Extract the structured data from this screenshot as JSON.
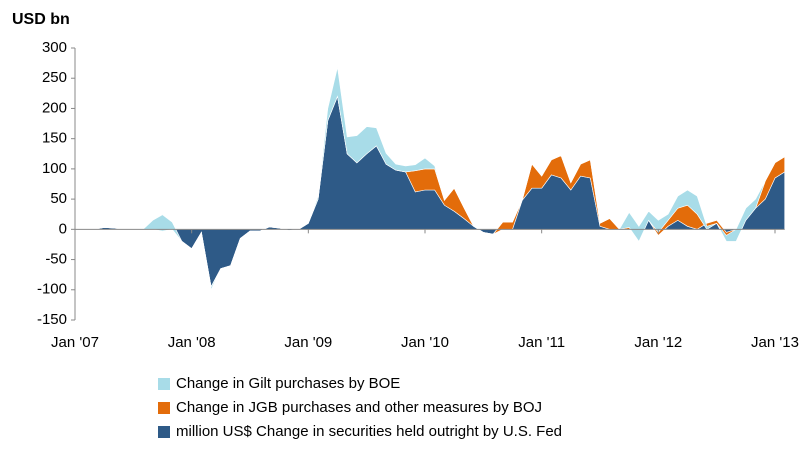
{
  "chart_data": {
    "type": "stacked-area",
    "title": "USD bn",
    "categories": [
      "Jan '07",
      null,
      null,
      null,
      null,
      null,
      null,
      null,
      null,
      null,
      null,
      null,
      "Jan '08",
      null,
      null,
      null,
      null,
      null,
      null,
      null,
      null,
      null,
      null,
      null,
      "Jan '09",
      null,
      null,
      null,
      null,
      null,
      null,
      null,
      null,
      null,
      null,
      null,
      "Jan '10",
      null,
      null,
      null,
      null,
      null,
      null,
      null,
      null,
      null,
      null,
      null,
      "Jan '11",
      null,
      null,
      null,
      null,
      null,
      null,
      null,
      null,
      null,
      null,
      null,
      "Jan '12",
      null,
      null,
      null,
      null,
      null,
      null,
      null,
      null,
      null,
      null,
      null,
      "Jan '13",
      null
    ],
    "series": [
      {
        "name": "million US$ Change in securities held outright by U.S. Fed",
        "color": "#2e5a87",
        "values": [
          0,
          0,
          0,
          3,
          2,
          0,
          0,
          0,
          0,
          -3,
          0,
          -20,
          -32,
          -5,
          -95,
          -65,
          -60,
          -15,
          -3,
          -3,
          4,
          2,
          -2,
          0,
          10,
          50,
          180,
          220,
          125,
          110,
          125,
          138,
          108,
          98,
          95,
          62,
          65,
          65,
          40,
          30,
          18,
          5,
          -5,
          -8,
          0,
          0,
          48,
          68,
          68,
          90,
          85,
          65,
          88,
          85,
          5,
          0,
          0,
          0,
          0,
          15,
          -10,
          5,
          15,
          5,
          0,
          10,
          15,
          -5,
          0,
          20,
          35,
          50,
          85,
          95
        ]
      },
      {
        "name": "Change in JGB purchases and other measures by BOJ",
        "color": "#e36c0a",
        "values": [
          0,
          0,
          0,
          0,
          0,
          0,
          0,
          0,
          0,
          0,
          0,
          0,
          0,
          0,
          0,
          0,
          0,
          0,
          0,
          0,
          0,
          0,
          0,
          0,
          0,
          0,
          0,
          0,
          0,
          0,
          0,
          0,
          0,
          0,
          0,
          35,
          35,
          35,
          8,
          38,
          18,
          0,
          0,
          0,
          12,
          12,
          0,
          40,
          20,
          25,
          37,
          12,
          20,
          30,
          5,
          18,
          0,
          3,
          -20,
          0,
          5,
          10,
          20,
          35,
          25,
          -10,
          -5,
          -15,
          -20,
          -5,
          0,
          30,
          25,
          25
        ]
      },
      {
        "name": "Change in Gilt purchases by BOE",
        "color": "#a8dce8",
        "values": [
          0,
          0,
          0,
          0,
          0,
          0,
          0,
          0,
          15,
          27,
          12,
          0,
          0,
          0,
          -5,
          0,
          0,
          0,
          0,
          0,
          0,
          0,
          0,
          0,
          0,
          5,
          20,
          48,
          28,
          45,
          45,
          30,
          18,
          10,
          10,
          10,
          18,
          5,
          0,
          0,
          0,
          0,
          0,
          0,
          0,
          0,
          0,
          0,
          0,
          0,
          0,
          0,
          0,
          0,
          0,
          0,
          0,
          25,
          25,
          15,
          20,
          10,
          20,
          25,
          30,
          5,
          0,
          10,
          20,
          20,
          15,
          0,
          0,
          0
        ]
      }
    ],
    "ylim": [
      -150,
      300
    ],
    "yticks": [
      -150,
      -100,
      -50,
      0,
      50,
      100,
      150,
      200,
      250,
      300
    ]
  }
}
